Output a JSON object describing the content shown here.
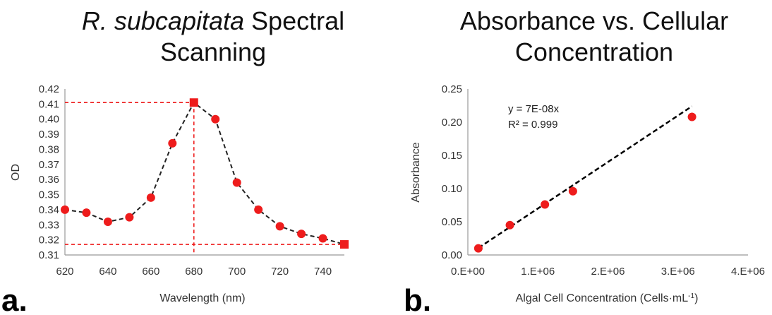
{
  "chart_data": [
    {
      "type": "line",
      "panel_label": "a.",
      "title_italic": "R. subcapitata",
      "title_rest": " Spectral",
      "title_line2": "Scanning",
      "xlabel": "Wavelength (nm)",
      "ylabel": "OD",
      "xlim": [
        620,
        750
      ],
      "ylim": [
        0.31,
        0.42
      ],
      "xticks": [
        620,
        640,
        660,
        680,
        700,
        720,
        740
      ],
      "yticks": [
        "0.31",
        "0.32",
        "0.33",
        "0.34",
        "0.35",
        "0.36",
        "0.37",
        "0.38",
        "0.39",
        "0.40",
        "0.41",
        "0.42"
      ],
      "x": [
        620,
        630,
        640,
        650,
        660,
        670,
        680,
        690,
        700,
        710,
        720,
        730,
        740,
        750
      ],
      "y": [
        0.34,
        0.338,
        0.332,
        0.335,
        0.348,
        0.384,
        0.411,
        0.4,
        0.358,
        0.34,
        0.329,
        0.324,
        0.321,
        0.317
      ],
      "square_markers": [
        [
          680,
          0.411
        ],
        [
          750,
          0.317
        ]
      ],
      "reference_lines": [
        {
          "orientation": "horizontal",
          "value": 0.411
        },
        {
          "orientation": "horizontal",
          "value": 0.317
        },
        {
          "orientation": "vertical",
          "value": 680
        }
      ],
      "series_color": "#222222",
      "marker_color": "#ee1c1c",
      "reference_color": "#ee1c1c",
      "grid": false
    },
    {
      "type": "scatter",
      "panel_label": "b.",
      "title_line1": "Absorbance vs. Cellular",
      "title_line2": "Concentration",
      "xlabel_main": "Algal Cell Concentration (Cells·mL",
      "xlabel_sup": "-1",
      "xlabel_end": ")",
      "ylabel": "Absorbance",
      "xlim": [
        0,
        4000000
      ],
      "ylim": [
        0,
        0.25
      ],
      "xticks": [
        "0.E+00",
        "1.E+06",
        "2.E+06",
        "3.E+06",
        "4.E+06"
      ],
      "yticks": [
        "0.00",
        "0.05",
        "0.10",
        "0.15",
        "0.20",
        "0.25"
      ],
      "x": [
        150000,
        600000,
        1100000,
        1500000,
        3200000
      ],
      "y": [
        0.01,
        0.045,
        0.076,
        0.096,
        0.208
      ],
      "trendline": {
        "slope": 7e-08,
        "x_start": 150000,
        "x_end": 3200000
      },
      "equation": "y = 7E-08x",
      "r_squared": "R² = 0.999",
      "marker_color": "#ee1c1c",
      "trend_color": "#000000",
      "grid": false
    }
  ]
}
